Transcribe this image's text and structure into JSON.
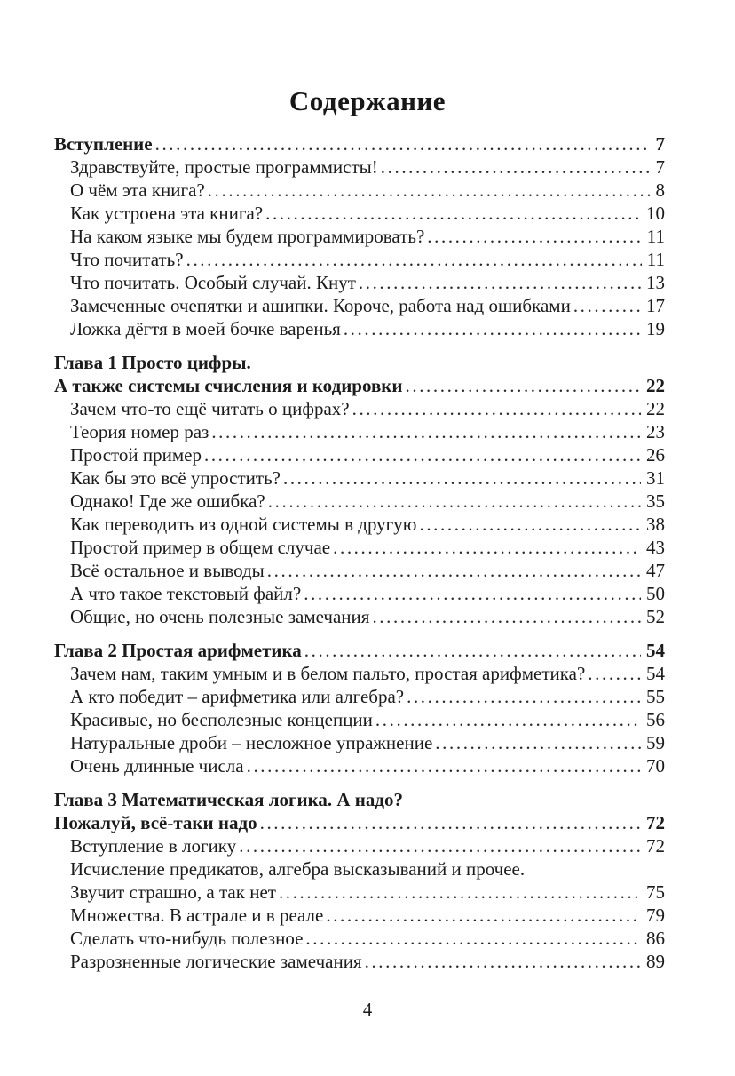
{
  "page": {
    "title": "Содержание",
    "page_number": "4"
  },
  "toc": {
    "sections": [
      {
        "name": "intro",
        "entries": [
          {
            "label": "Вступление",
            "page": "7",
            "bold": true,
            "indent": false,
            "dots": true
          },
          {
            "label": "Здравствуйте, простые программисты!",
            "page": "7",
            "bold": false,
            "indent": true,
            "dots": true
          },
          {
            "label": "О чём эта книга?",
            "page": "8",
            "bold": false,
            "indent": true,
            "dots": true
          },
          {
            "label": "Как устроена эта книга?",
            "page": "10",
            "bold": false,
            "indent": true,
            "dots": true
          },
          {
            "label": "На каком языке мы будем программировать?",
            "page": "11",
            "bold": false,
            "indent": true,
            "dots": true
          },
          {
            "label": "Что почитать?",
            "page": "11",
            "bold": false,
            "indent": true,
            "dots": true
          },
          {
            "label": "Что почитать. Особый случай. Кнут",
            "page": "13",
            "bold": false,
            "indent": true,
            "dots": true
          },
          {
            "label": "Замеченные очепятки и ашипки. Короче, работа над ошибками",
            "page": "17",
            "bold": false,
            "indent": true,
            "dots": true
          },
          {
            "label": "Ложка дёгтя в моей бочке варенья",
            "page": "19",
            "bold": false,
            "indent": true,
            "dots": true
          }
        ]
      },
      {
        "name": "chapter-1",
        "entries": [
          {
            "label": "Глава 1 Просто цифры.",
            "page": null,
            "bold": true,
            "indent": false,
            "dots": false
          },
          {
            "label": "А также системы счисления и кодировки",
            "page": "22",
            "bold": true,
            "indent": false,
            "dots": true
          },
          {
            "label": "Зачем что-то ещё читать о цифрах?",
            "page": "22",
            "bold": false,
            "indent": true,
            "dots": true
          },
          {
            "label": "Теория номер раз",
            "page": "23",
            "bold": false,
            "indent": true,
            "dots": true
          },
          {
            "label": "Простой пример",
            "page": "26",
            "bold": false,
            "indent": true,
            "dots": true
          },
          {
            "label": "Как бы это всё упростить?",
            "page": "31",
            "bold": false,
            "indent": true,
            "dots": true
          },
          {
            "label": "Однако! Где же ошибка?",
            "page": "35",
            "bold": false,
            "indent": true,
            "dots": true
          },
          {
            "label": "Как переводить из одной системы в другую",
            "page": "38",
            "bold": false,
            "indent": true,
            "dots": true
          },
          {
            "label": "Простой пример в общем случае",
            "page": "43",
            "bold": false,
            "indent": true,
            "dots": true
          },
          {
            "label": "Всё остальное и выводы",
            "page": "47",
            "bold": false,
            "indent": true,
            "dots": true
          },
          {
            "label": "А что такое текстовый файл?",
            "page": "50",
            "bold": false,
            "indent": true,
            "dots": true
          },
          {
            "label": "Общие, но очень полезные замечания",
            "page": "52",
            "bold": false,
            "indent": true,
            "dots": true
          }
        ]
      },
      {
        "name": "chapter-2",
        "entries": [
          {
            "label": "Глава 2 Простая арифметика",
            "page": "54",
            "bold": true,
            "indent": false,
            "dots": true
          },
          {
            "label": "Зачем нам, таким умным и в белом пальто, простая арифметика?",
            "page": "54",
            "bold": false,
            "indent": true,
            "dots": true
          },
          {
            "label": "А кто победит – арифметика или алгебра?",
            "page": "55",
            "bold": false,
            "indent": true,
            "dots": true
          },
          {
            "label": "Красивые, но бесполезные концепции",
            "page": "56",
            "bold": false,
            "indent": true,
            "dots": true
          },
          {
            "label": "Натуральные дроби – несложное упражнение",
            "page": "59",
            "bold": false,
            "indent": true,
            "dots": true
          },
          {
            "label": "Очень длинные числа",
            "page": "70",
            "bold": false,
            "indent": true,
            "dots": true
          }
        ]
      },
      {
        "name": "chapter-3",
        "entries": [
          {
            "label": "Глава 3 Математическая логика. А надо?",
            "page": null,
            "bold": true,
            "indent": false,
            "dots": false
          },
          {
            "label": "Пожалуй, всё-таки надо",
            "page": "72",
            "bold": true,
            "indent": false,
            "dots": true
          },
          {
            "label": "Вступление в логику",
            "page": "72",
            "bold": false,
            "indent": true,
            "dots": true
          },
          {
            "label": "Исчисление предикатов, алгебра высказываний и прочее.",
            "page": null,
            "bold": false,
            "indent": true,
            "dots": false
          },
          {
            "label": "Звучит страшно, а так нет",
            "page": "75",
            "bold": false,
            "indent": true,
            "dots": true
          },
          {
            "label": "Множества. В астрале и в реале",
            "page": "79",
            "bold": false,
            "indent": true,
            "dots": true
          },
          {
            "label": "Сделать что-нибудь полезное",
            "page": "86",
            "bold": false,
            "indent": true,
            "dots": true
          },
          {
            "label": "Разрозненные логические замечания",
            "page": "89",
            "bold": false,
            "indent": true,
            "dots": true
          }
        ]
      }
    ]
  }
}
